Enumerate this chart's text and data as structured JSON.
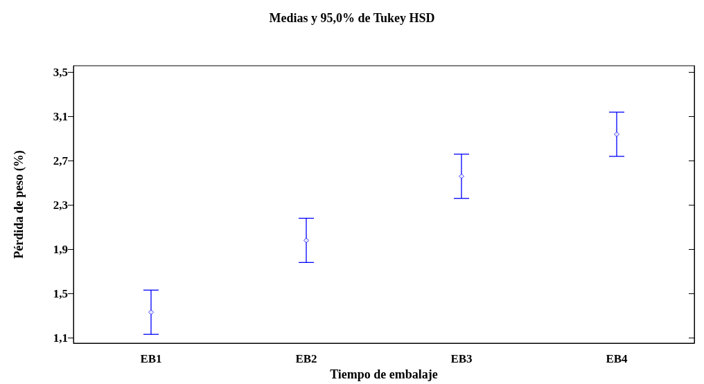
{
  "chart_data": {
    "type": "scatter",
    "title": "Medias y 95,0% de Tukey HSD",
    "xlabel": "Tiempo de embalaje",
    "ylabel": "Pérdida de peso (%)",
    "categories": [
      "EB1",
      "EB2",
      "EB3",
      "EB4"
    ],
    "series": [
      {
        "color": "#0000ff",
        "values": [
          1.33,
          1.98,
          2.56,
          2.94
        ],
        "errors": [
          0.2,
          0.2,
          0.2,
          0.2
        ]
      }
    ],
    "marker": "diamond",
    "ylim": [
      1.05,
      3.56
    ],
    "yticks": [
      {
        "value": 1.1,
        "label": "1,1"
      },
      {
        "value": 1.5,
        "label": "1,5"
      },
      {
        "value": 1.9,
        "label": "1,9"
      },
      {
        "value": 2.3,
        "label": "2,3"
      },
      {
        "value": 2.7,
        "label": "2,7"
      },
      {
        "value": 3.1,
        "label": "3,1"
      },
      {
        "value": 3.5,
        "label": "3,5"
      }
    ],
    "grid": false
  }
}
